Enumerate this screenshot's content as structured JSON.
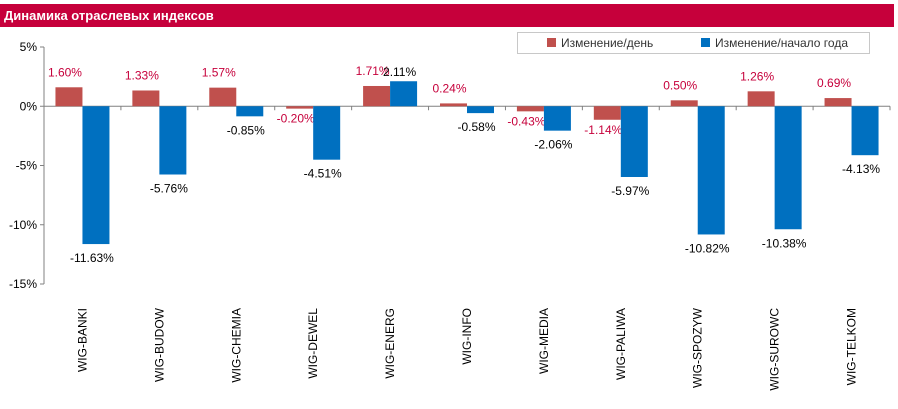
{
  "header": {
    "title": "Динамика отраслевых индексов"
  },
  "colors": {
    "header_bg": "#c6003b",
    "series_day": "#c0504d",
    "series_ytd": "#0070c0",
    "day_label": "#c6003b",
    "ytd_label": "#000000"
  },
  "chart_data": {
    "type": "bar",
    "title": "Динамика отраслевых индексов",
    "categories": [
      "WIG-BANKI",
      "WIG-BUDOW",
      "WIG-CHEMIA",
      "WIG-DEWEL",
      "WIG-ENERG",
      "WIG-INFO",
      "WIG-MEDIA",
      "WIG-PALIWA",
      "WIG-SPOZYW",
      "WIG-SUROWC",
      "WIG-TELKOM"
    ],
    "series": [
      {
        "name": "Изменение/день",
        "values": [
          1.6,
          1.33,
          1.57,
          -0.2,
          1.71,
          0.24,
          -0.43,
          -1.14,
          0.5,
          1.26,
          0.69
        ],
        "labels": [
          "1.60%",
          "1.33%",
          "1.57%",
          "-0.20%",
          "1.71%",
          "0.24%",
          "-0.43%",
          "-1.14%",
          "0.50%",
          "1.26%",
          "0.69%"
        ]
      },
      {
        "name": "Изменение/начало года",
        "values": [
          -11.63,
          -5.76,
          -0.85,
          -4.51,
          2.11,
          -0.58,
          -2.06,
          -5.97,
          -10.82,
          -10.38,
          -4.13
        ],
        "labels": [
          "-11.63%",
          "-5.76%",
          "-0.85%",
          "-4.51%",
          "2.11%",
          "-0.58%",
          "-2.06%",
          "-5.97%",
          "-10.82%",
          "-10.38%",
          "-4.13%"
        ]
      }
    ],
    "yticks": [
      "5%",
      "0%",
      "-5%",
      "-10%",
      "-15%"
    ],
    "ytick_values": [
      5,
      0,
      -5,
      -10,
      -15
    ],
    "ylim": [
      -15,
      5
    ],
    "legend_position": "top-right",
    "grid": false
  }
}
